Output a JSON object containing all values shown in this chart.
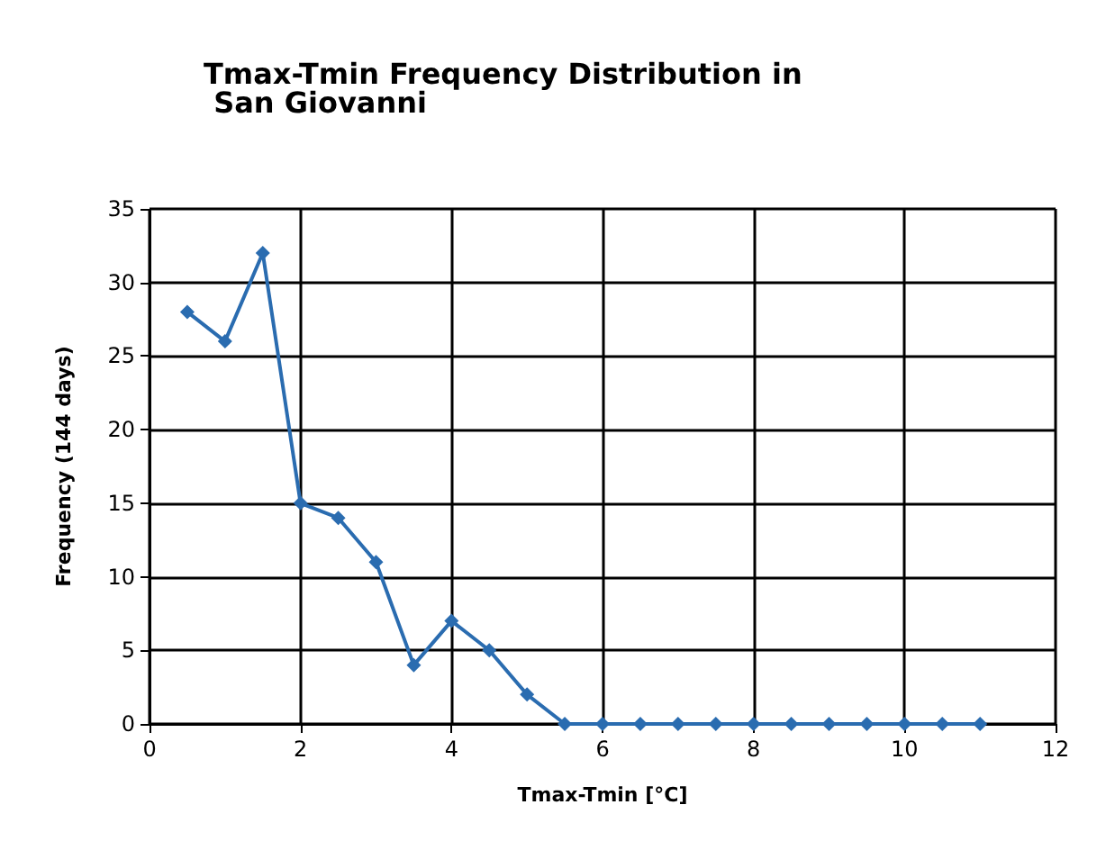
{
  "chart_data": {
    "type": "line",
    "title": "Tmax-Tmin Frequency Distribution in San Giovanni",
    "xlabel": "Tmax-Tmin [°C]",
    "ylabel": "Frequency (144 days)",
    "x": [
      0.5,
      1,
      1.5,
      2,
      2.5,
      3,
      3.5,
      4,
      4.5,
      5,
      5.5,
      6,
      6.5,
      7,
      7.5,
      8,
      8.5,
      9,
      9.5,
      10,
      10.5,
      11
    ],
    "series": [
      {
        "color": "#2a6cb0",
        "values": [
          28,
          26,
          32,
          15,
          14,
          11,
          4,
          7,
          5,
          2,
          0,
          0,
          0,
          0,
          0,
          0,
          0,
          0,
          0,
          0,
          0,
          0
        ]
      }
    ],
    "xlim": [
      0,
      12
    ],
    "xticks": [
      0,
      2,
      4,
      6,
      8,
      10,
      12
    ],
    "ylim": [
      0,
      35
    ],
    "yticks": [
      0,
      5,
      10,
      15,
      20,
      25,
      30,
      35
    ],
    "grid": true,
    "marker": "diamond",
    "line_style": "solid"
  }
}
